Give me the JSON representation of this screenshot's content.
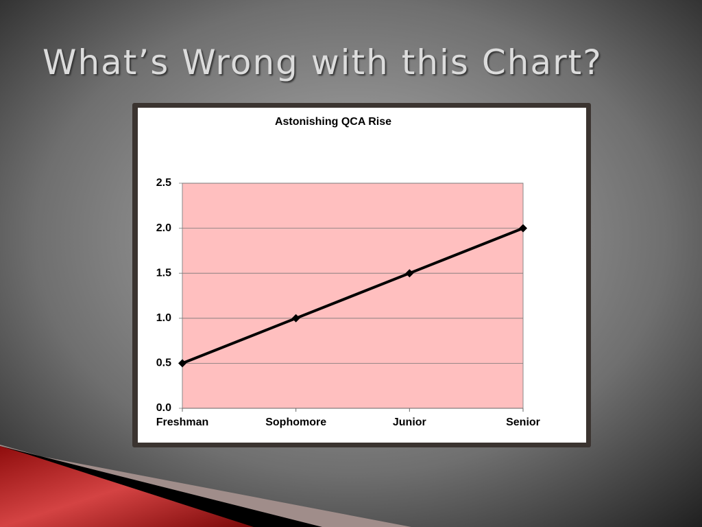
{
  "slide_title": "What’s Wrong with this Chart?",
  "chart_data": {
    "type": "line",
    "title": "Astonishing QCA Rise",
    "categories": [
      "Freshman",
      "Sophomore",
      "Junior",
      "Senior"
    ],
    "values": [
      0.5,
      1.0,
      1.5,
      2.0
    ],
    "color": "#000000",
    "plot_background": "#ffbfbf",
    "ylim": [
      0,
      2.5
    ],
    "yticks": [
      {
        "value": 0,
        "label": "0.0"
      },
      0.5,
      {
        "value": 1,
        "label": "1.0"
      },
      1.5,
      {
        "value": 2,
        "label": "2.0"
      },
      2.5
    ],
    "grid": true
  }
}
